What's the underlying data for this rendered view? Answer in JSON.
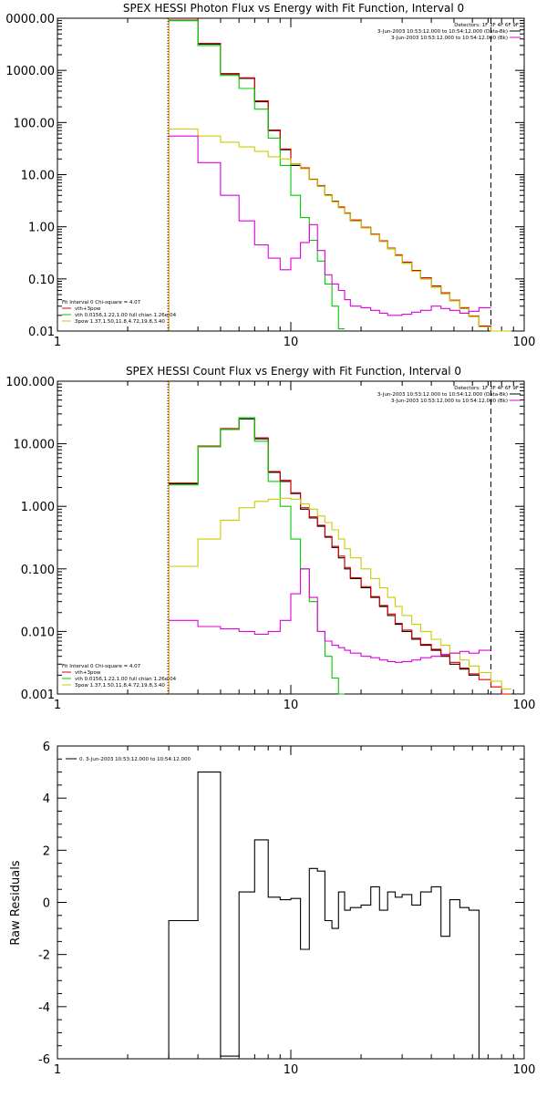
{
  "chart_data": [
    {
      "type": "line",
      "title": "SPEX HESSI Photon Flux vs Energy with Fit Function, Interval 0",
      "xscale": "log",
      "yscale": "log",
      "xlim": [
        1,
        100
      ],
      "ylim": [
        0.01,
        10000
      ],
      "y_tick_labels": [
        "0.01",
        "0.10",
        "1.00",
        "10.00",
        "100.00",
        "1000.00",
        "0000.00"
      ],
      "x_tick_labels": [
        "1",
        "10",
        "100"
      ],
      "legend_top": {
        "header": "Detectors: 1F 3F 4F 6F 9F",
        "entries": [
          {
            "label": "3-Jun-2003 10:53:12.000 to 10:54:12.000 (Data-Bk)",
            "color": "#000000"
          },
          {
            "label": "3-Jun-2003 10:53:12.000 to 10:54:12.000 (Bk)",
            "color": "#e000e0"
          }
        ]
      },
      "legend_bottom": {
        "header": "Fit Interval 0   Chi-square = 4.07",
        "entries": [
          {
            "label": "vth+3pow",
            "color": "#e00000"
          },
          {
            "label": "vth 0.0156,1.22,1.00  full chian 1.26e-04",
            "color": "#00cc00"
          },
          {
            "label": "3pow 1.37,1.50,11.8,4.72,19.8,3.40",
            "color": "#cccc00"
          }
        ]
      },
      "vlines": [
        {
          "x": 3.0,
          "style": "dotted",
          "color": "#000000"
        },
        {
          "x": 3.0,
          "style": "solid",
          "color": "#dd8800"
        },
        {
          "x": 72,
          "style": "dashed",
          "color": "#000000"
        }
      ],
      "edges": [
        3.0,
        4.0,
        5.0,
        6.0,
        7.0,
        8.0,
        9.0,
        10.0,
        11.0,
        12.0,
        13.0,
        14.0,
        15.0,
        16.0,
        17.0,
        18.0,
        20.0,
        22.0,
        24.0,
        26.0,
        28.0,
        30.0,
        33.0,
        36.0,
        40.0,
        44.0,
        48.0,
        53.0,
        58.0,
        64.0,
        72.0,
        80.0,
        88.0
      ],
      "series": [
        {
          "name": "Data-Bk",
          "color": "#000000",
          "values": [
            9000,
            3200,
            850,
            700,
            250,
            70,
            30,
            15,
            13,
            8,
            6,
            4,
            3,
            2.3,
            1.8,
            1.3,
            0.95,
            0.7,
            0.52,
            0.38,
            0.28,
            0.2,
            0.14,
            0.1,
            0.07,
            0.052,
            0.038,
            0.027,
            0.019,
            0.012
          ]
        },
        {
          "name": "vth+3pow",
          "color": "#e00000",
          "values": [
            9200,
            3300,
            870,
            720,
            260,
            72,
            31,
            16,
            13.5,
            8.2,
            6.2,
            4.1,
            3.1,
            2.4,
            1.85,
            1.35,
            0.98,
            0.72,
            0.54,
            0.39,
            0.29,
            0.21,
            0.145,
            0.105,
            0.073,
            0.054,
            0.039,
            0.028,
            0.0195,
            0.0125,
            0.0085,
            0.0065
          ]
        },
        {
          "name": "vth",
          "color": "#00cc00",
          "values": [
            9000,
            3000,
            800,
            450,
            180,
            50,
            15,
            4,
            1.5,
            0.55,
            0.22,
            0.08,
            0.03,
            0.011
          ]
        },
        {
          "name": "3pow",
          "color": "#cccc00",
          "values": [
            75,
            55,
            42,
            34,
            28,
            22,
            20,
            16,
            13,
            8,
            6,
            4,
            3,
            2.3,
            1.8,
            1.3,
            0.95,
            0.7,
            0.52,
            0.38,
            0.28,
            0.2,
            0.14,
            0.1,
            0.07,
            0.052,
            0.038,
            0.027,
            0.019,
            0.012,
            0.0085,
            0.0065
          ]
        },
        {
          "name": "Bk",
          "color": "#e000e0",
          "values": [
            55,
            17,
            4,
            1.3,
            0.45,
            0.25,
            0.15,
            0.25,
            0.5,
            1.1,
            0.35,
            0.12,
            0.08,
            0.06,
            0.04,
            0.03,
            0.028,
            0.025,
            0.022,
            0.02,
            0.02,
            0.021,
            0.023,
            0.025,
            0.03,
            0.027,
            0.025,
            0.022,
            0.024,
            0.028
          ]
        }
      ]
    },
    {
      "type": "line",
      "title": "SPEX HESSI Count Flux vs Energy with Fit Function, Interval 0",
      "xscale": "log",
      "yscale": "log",
      "xlim": [
        1,
        100
      ],
      "ylim": [
        0.001,
        100
      ],
      "y_tick_labels": [
        "0.001",
        "0.010",
        "0.100",
        "1.000",
        "10.000",
        "100.000"
      ],
      "x_tick_labels": [
        "1",
        "10",
        "100"
      ],
      "legend_top": {
        "header": "Detectors: 1F 3F 4F 6F 9F",
        "entries": [
          {
            "label": "3-Jun-2003 10:53:12.000 to 10:54:12.000 (Data-Bk)",
            "color": "#000000"
          },
          {
            "label": "3-Jun-2003 10:53:12.000 to 10:54:12.000 (Bk)",
            "color": "#e000e0"
          }
        ]
      },
      "legend_bottom": {
        "header": "Fit Interval 0   Chi-square = 4.07",
        "entries": [
          {
            "label": "vth+3pow",
            "color": "#e00000"
          },
          {
            "label": "vth 0.0156,1.22,1.00  full chian 1.26e-04",
            "color": "#00cc00"
          },
          {
            "label": "3pow 1.37,1.50,11.8,4.72,19.8,3.40",
            "color": "#cccc00"
          }
        ]
      },
      "vlines": [
        {
          "x": 3.0,
          "style": "dotted",
          "color": "#000000"
        },
        {
          "x": 3.0,
          "style": "solid",
          "color": "#dd8800"
        },
        {
          "x": 72,
          "style": "dashed",
          "color": "#000000"
        }
      ],
      "edges": [
        3.0,
        4.0,
        5.0,
        6.0,
        7.0,
        8.0,
        9.0,
        10.0,
        11.0,
        12.0,
        13.0,
        14.0,
        15.0,
        16.0,
        17.0,
        18.0,
        20.0,
        22.0,
        24.0,
        26.0,
        28.0,
        30.0,
        33.0,
        36.0,
        40.0,
        44.0,
        48.0,
        53.0,
        58.0,
        64.0,
        72.0,
        80.0,
        88.0
      ],
      "series": [
        {
          "name": "Data-Bk",
          "color": "#000000",
          "values": [
            2.3,
            9,
            17,
            25,
            12,
            3.5,
            2.5,
            1.6,
            0.9,
            0.65,
            0.48,
            0.32,
            0.22,
            0.15,
            0.1,
            0.07,
            0.05,
            0.035,
            0.025,
            0.018,
            0.013,
            0.01,
            0.0075,
            0.006,
            0.005,
            0.004,
            0.003,
            0.0025,
            0.002
          ]
        },
        {
          "name": "vth+3pow",
          "color": "#e00000",
          "values": [
            2.35,
            9.2,
            17.5,
            26,
            12.5,
            3.6,
            2.6,
            1.65,
            0.95,
            0.68,
            0.5,
            0.33,
            0.23,
            0.16,
            0.105,
            0.072,
            0.052,
            0.036,
            0.026,
            0.019,
            0.0135,
            0.0105,
            0.0078,
            0.0062,
            0.0052,
            0.0042,
            0.0032,
            0.0026,
            0.0021,
            0.0017,
            0.0013,
            0.001
          ]
        },
        {
          "name": "vth",
          "color": "#00cc00",
          "values": [
            2.2,
            9,
            17,
            26,
            11,
            2.5,
            1.0,
            0.3,
            0.1,
            0.03,
            0.01,
            0.004,
            0.0018,
            0.001
          ]
        },
        {
          "name": "3pow",
          "color": "#cccc00",
          "values": [
            0.11,
            0.3,
            0.6,
            0.95,
            1.2,
            1.3,
            1.35,
            1.3,
            1.1,
            0.9,
            0.7,
            0.55,
            0.42,
            0.3,
            0.21,
            0.15,
            0.1,
            0.07,
            0.05,
            0.035,
            0.025,
            0.018,
            0.013,
            0.01,
            0.0075,
            0.006,
            0.0045,
            0.0035,
            0.0028,
            0.0022,
            0.0016,
            0.0012
          ]
        },
        {
          "name": "Bk",
          "color": "#e000e0",
          "values": [
            0.015,
            0.012,
            0.011,
            0.01,
            0.009,
            0.01,
            0.015,
            0.04,
            0.1,
            0.035,
            0.01,
            0.007,
            0.006,
            0.0055,
            0.005,
            0.0045,
            0.004,
            0.0038,
            0.0035,
            0.0033,
            0.0032,
            0.0033,
            0.0035,
            0.0038,
            0.004,
            0.0043,
            0.0045,
            0.0048,
            0.0045,
            0.005
          ]
        }
      ]
    },
    {
      "type": "line",
      "title": "",
      "ylabel": "Raw Residuals",
      "xscale": "log",
      "xlim": [
        1,
        100
      ],
      "ylim": [
        -6,
        6
      ],
      "y_tick_labels": [
        "6",
        "4",
        "2",
        "0",
        "-2",
        "-4",
        "-6"
      ],
      "x_tick_labels": [
        "1",
        "10",
        "100"
      ],
      "legend_top": {
        "header": "",
        "entries": [
          {
            "label": "0. 3-Jun-2003 10:53:12.000 to 10:54:12.000",
            "color": "#000000"
          }
        ]
      },
      "edges": [
        3.0,
        4.0,
        5.0,
        6.0,
        7.0,
        8.0,
        9.0,
        10.0,
        11.0,
        12.0,
        13.0,
        14.0,
        15.0,
        16.0,
        17.0,
        18.0,
        20.0,
        22.0,
        24.0,
        26.0,
        28.0,
        30.0,
        33.0,
        36.0,
        40.0,
        44.0,
        48.0,
        53.0,
        58.0,
        64.0,
        72.0
      ],
      "series": [
        {
          "name": "residuals",
          "color": "#000000",
          "values": [
            -0.7,
            5.0,
            -5.9,
            0.4,
            2.4,
            0.2,
            0.1,
            0.15,
            -1.8,
            1.3,
            1.2,
            -0.7,
            -1.0,
            0.4,
            -0.3,
            -0.2,
            -0.1,
            0.6,
            -0.3,
            0.4,
            0.2,
            0.3,
            -0.1,
            0.4,
            0.6,
            -1.3,
            0.1,
            -0.2,
            -0.3,
            -6.0
          ]
        }
      ]
    }
  ]
}
